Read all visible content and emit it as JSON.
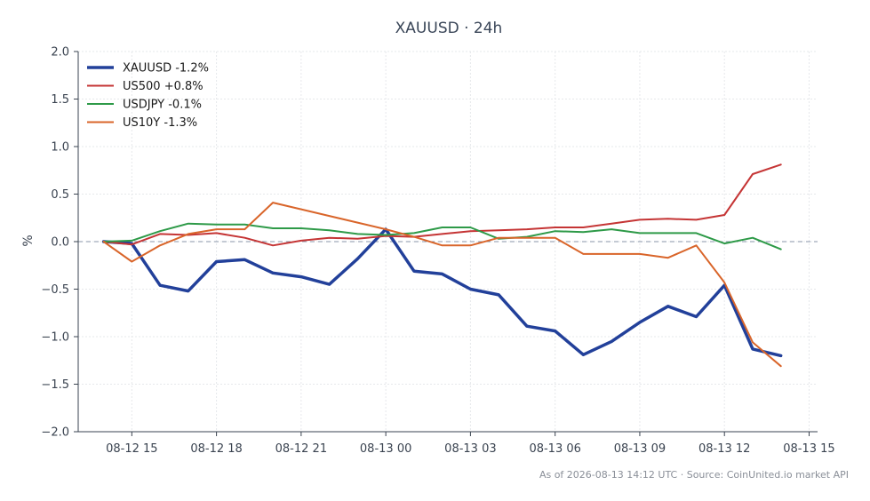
{
  "chart_data": {
    "type": "line",
    "title": "XAUUSD · 24h",
    "xlabel": "",
    "ylabel": "%",
    "ylim": [
      -2.0,
      2.0
    ],
    "yticks": [
      2.0,
      1.5,
      1.0,
      0.5,
      0.0,
      -0.5,
      -1.0,
      -1.5,
      -2.0
    ],
    "ytick_labels": [
      "2.0",
      "1.5",
      "1.0",
      "0.5",
      "0.0",
      "−0.5",
      "−1.0",
      "−1.5",
      "−2.0"
    ],
    "xlim": [
      "2026-08-12 13:06",
      "2026-08-13 15:18"
    ],
    "xticks": [
      "2026-08-12 15:00",
      "2026-08-12 18:00",
      "2026-08-12 21:00",
      "2026-08-13 00:00",
      "2026-08-13 03:00",
      "2026-08-13 06:00",
      "2026-08-13 09:00",
      "2026-08-13 12:00",
      "2026-08-13 15:00"
    ],
    "xtick_labels": [
      "08-12 15",
      "08-12 18",
      "08-12 21",
      "08-13 00",
      "08-13 03",
      "08-13 06",
      "08-13 09",
      "08-13 12",
      "08-13 15"
    ],
    "x": [
      "2026-08-12 14:00",
      "2026-08-12 15:00",
      "2026-08-12 16:00",
      "2026-08-12 17:00",
      "2026-08-12 18:00",
      "2026-08-12 19:00",
      "2026-08-12 20:00",
      "2026-08-12 21:00",
      "2026-08-12 22:00",
      "2026-08-12 23:00",
      "2026-08-13 00:00",
      "2026-08-13 01:00",
      "2026-08-13 02:00",
      "2026-08-13 03:00",
      "2026-08-13 04:00",
      "2026-08-13 05:00",
      "2026-08-13 06:00",
      "2026-08-13 07:00",
      "2026-08-13 08:00",
      "2026-08-13 09:00",
      "2026-08-13 10:00",
      "2026-08-13 11:00",
      "2026-08-13 12:00",
      "2026-08-13 13:00",
      "2026-08-13 14:00"
    ],
    "grid": true,
    "reference_line": 0.0,
    "legend_position": "top-left",
    "series": [
      {
        "name": "XAUUSD -1.2%",
        "color": "#22409a",
        "values": [
          0.0,
          -0.02,
          -0.46,
          -0.52,
          -0.21,
          -0.19,
          -0.33,
          -0.37,
          -0.45,
          -0.18,
          0.13,
          -0.31,
          -0.34,
          -0.5,
          -0.56,
          -0.89,
          -0.94,
          -1.19,
          -1.05,
          -0.85,
          -0.68,
          -0.79,
          -0.46,
          -1.13,
          -1.2
        ]
      },
      {
        "name": "US500 +0.8%",
        "color": "#c53535",
        "values": [
          0.0,
          -0.03,
          0.08,
          0.07,
          0.09,
          0.04,
          -0.04,
          0.01,
          0.04,
          0.03,
          0.06,
          0.05,
          0.08,
          0.11,
          0.12,
          0.13,
          0.15,
          0.15,
          0.19,
          0.23,
          0.24,
          0.23,
          0.28,
          0.71,
          0.81
        ]
      },
      {
        "name": "USDJPY -0.1%",
        "color": "#2e9a48",
        "values": [
          0.0,
          0.01,
          0.11,
          0.19,
          0.18,
          0.18,
          0.14,
          0.14,
          0.12,
          0.08,
          0.07,
          0.09,
          0.15,
          0.15,
          0.03,
          0.05,
          0.11,
          0.1,
          0.13,
          0.09,
          0.09,
          0.09,
          -0.02,
          0.04,
          -0.08
        ]
      },
      {
        "name": "US10Y -1.3%",
        "color": "#d9652a",
        "values": [
          0.0,
          -0.21,
          -0.04,
          0.08,
          0.13,
          0.13,
          0.41,
          0.34,
          0.27,
          0.2,
          0.13,
          0.05,
          -0.04,
          -0.04,
          0.04,
          0.04,
          0.04,
          -0.13,
          -0.13,
          -0.13,
          -0.17,
          -0.04,
          -0.43,
          -1.06,
          -1.31
        ]
      }
    ]
  },
  "footer": "As of 2026-08-13 14:12 UTC · Source: CoinUnited.io market API"
}
